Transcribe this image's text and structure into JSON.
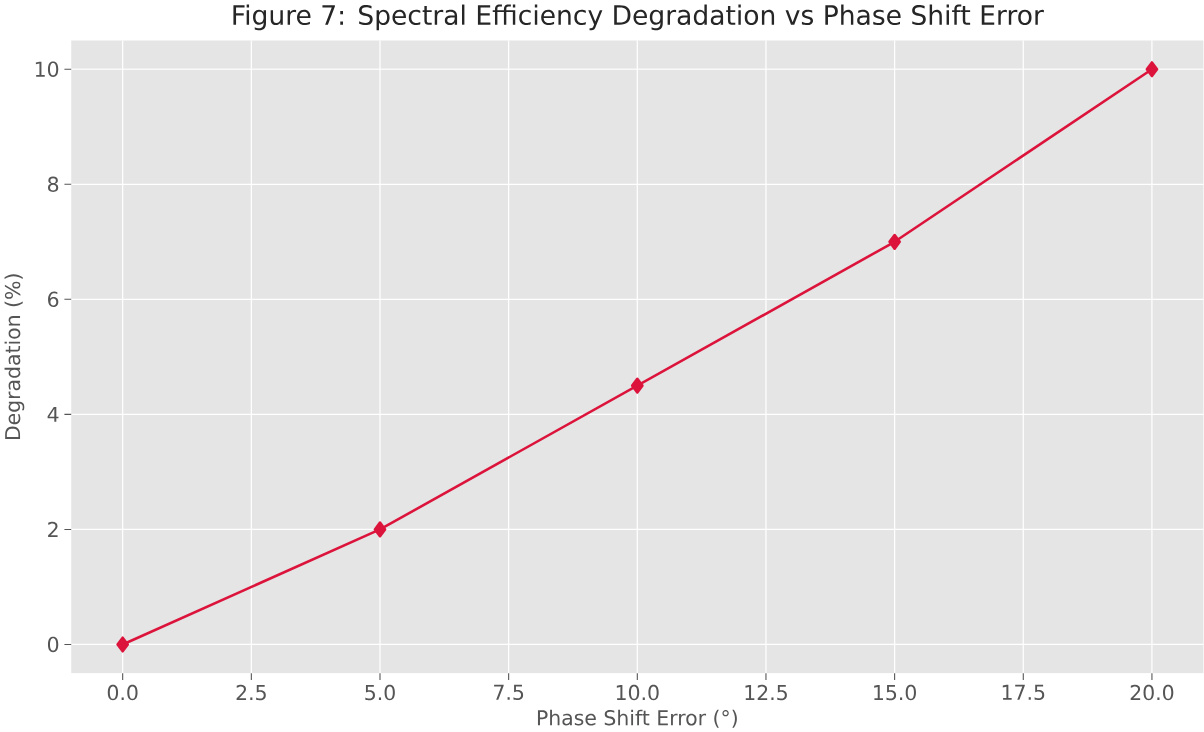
{
  "chart_data": {
    "type": "line",
    "title": "Figure 7: Spectral Efficiency Degradation vs Phase Shift Error",
    "xlabel": "Phase Shift Error (°)",
    "ylabel": "Degradation (%)",
    "x": [
      0,
      5,
      10,
      15,
      20
    ],
    "series": [
      {
        "color": "#dc143c",
        "values": [
          0,
          2,
          4.5,
          7,
          10
        ]
      }
    ],
    "xlim": [
      -1,
      21
    ],
    "ylim": [
      -0.5,
      10.5
    ],
    "xticks": [
      {
        "value": 0,
        "label": "0.0"
      },
      {
        "value": 2.5,
        "label": "2.5"
      },
      {
        "value": 5,
        "label": "5.0"
      },
      {
        "value": 7.5,
        "label": "7.5"
      },
      {
        "value": 10,
        "label": "10.0"
      },
      {
        "value": 12.5,
        "label": "12.5"
      },
      {
        "value": 15,
        "label": "15.0"
      },
      {
        "value": 17.5,
        "label": "17.5"
      },
      {
        "value": 20,
        "label": "20.0"
      }
    ],
    "yticks": [
      0,
      2,
      4,
      6,
      8,
      10
    ],
    "grid": true,
    "marker": "diamond",
    "line_style": "solid"
  }
}
